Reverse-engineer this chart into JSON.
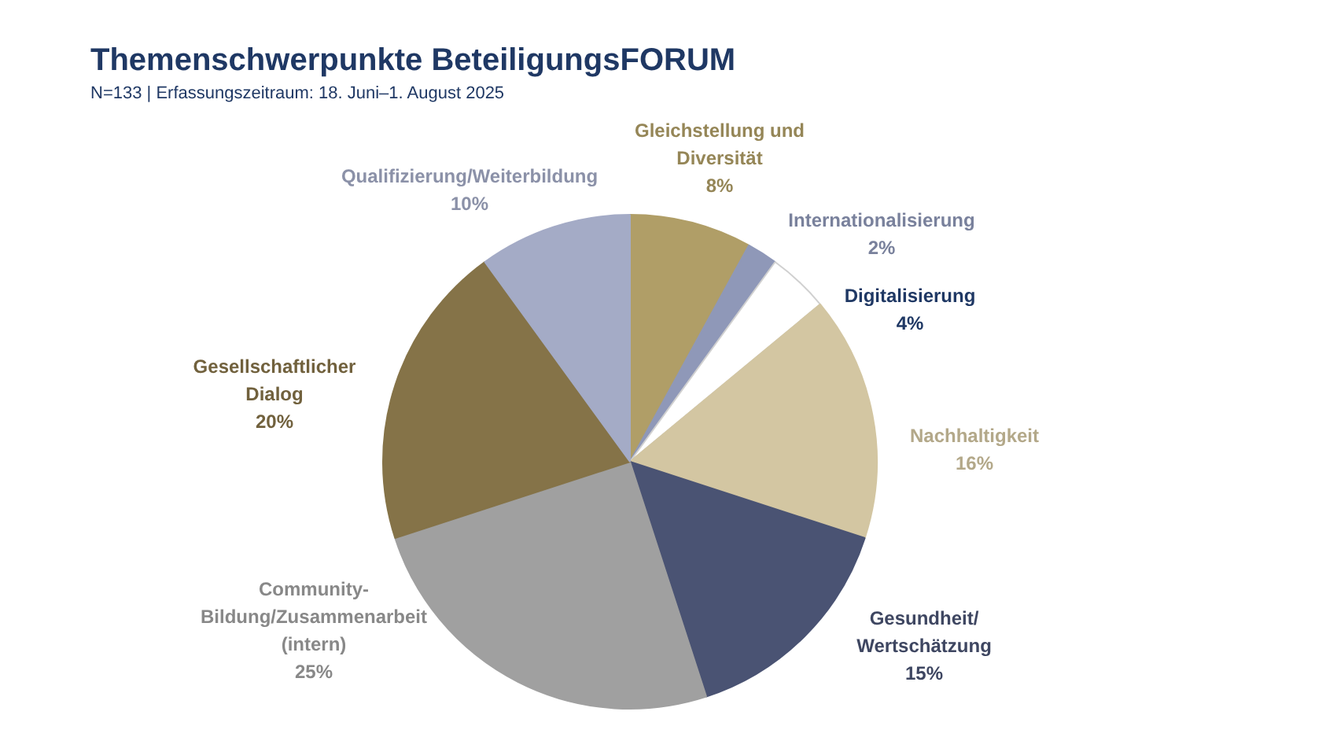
{
  "chart_data": {
    "type": "pie",
    "title": "Themenschwerpunkte BeteiligungsFORUM",
    "subtitle": "N=133 | Erfassungszeitraum:  18. Juni–1. August 2025",
    "categories": [
      "Gleichstellung und\nDiversität",
      "Internationalisierung",
      "Digitalisierung",
      "Nachhaltigkeit",
      "Gesundheit/\nWertschätzung",
      "Community-\nBildung/Zusammenarbeit\n(intern)",
      "Gesellschaftlicher\nDialog",
      "Qualifizierung/Weiterbildung"
    ],
    "values": [
      8,
      2,
      4,
      16,
      15,
      25,
      20,
      10
    ],
    "value_labels": [
      "8%",
      "2%",
      "4%",
      "16%",
      "15%",
      "25%",
      "20%",
      "10%"
    ],
    "colors": [
      "#b09e67",
      "#8f98b8",
      "#ffffff",
      "#d3c6a2",
      "#4a5373",
      "#a0a0a0",
      "#857348",
      "#a4abc6"
    ]
  }
}
